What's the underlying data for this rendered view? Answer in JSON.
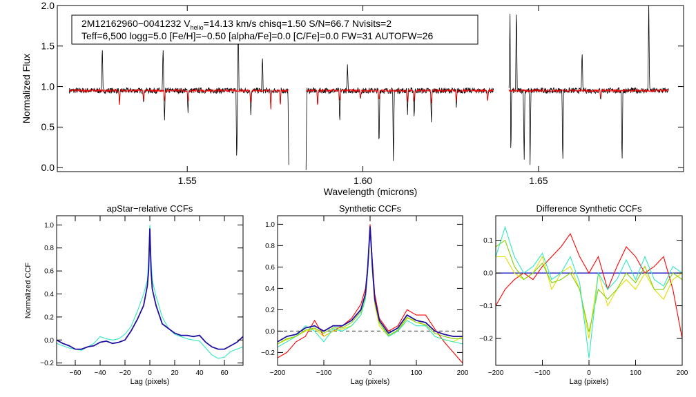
{
  "chart_data": [
    {
      "type": "line",
      "id": "spectrum",
      "xlabel": "Wavelength (microns)",
      "ylabel": "Normalized Flux",
      "xlim": [
        1.513,
        1.6913
      ],
      "ylim": [
        -0.05,
        2.0
      ],
      "xticks": [
        1.55,
        1.6,
        1.65
      ],
      "xtick_labels": [
        "1.55",
        "1.60",
        "1.65"
      ],
      "yticks": [
        0.0,
        0.5,
        1.0,
        1.5,
        2.0
      ],
      "ytick_labels": [
        "0.0",
        "0.5",
        "1.0",
        "1.5",
        "2.0"
      ],
      "annotation": {
        "line1_prefix": "2M12162960−0041232  V",
        "line1_sub": "helio",
        "line1_suffix": "=14.13 km/s  chisq=1.50  S/N=66.7  Nvisits=2",
        "line2": "Teff=6,500 logg=5.0 [Fe/H]=−0.50 [alpha/Fe]=0.0 [C/Fe]=0.0 FW=31 AUTOFW=26"
      },
      "continuum": 0.95,
      "segments": [
        [
          1.5164,
          1.5789
        ],
        [
          1.5838,
          1.6372
        ],
        [
          1.6416,
          1.687
        ]
      ],
      "series": [
        {
          "name": "observed",
          "color": "#000000",
          "lines": [
            [
              1.5258,
              1.5
            ],
            [
              1.5307,
              0.75
            ],
            [
              1.5376,
              0.8
            ],
            [
              1.5431,
              1.5
            ],
            [
              1.5435,
              0.55
            ],
            [
              1.5502,
              0.7
            ],
            [
              1.5641,
              0.0
            ],
            [
              1.5645,
              2.05
            ],
            [
              1.5681,
              0.65
            ],
            [
              1.5714,
              1.4
            ],
            [
              1.5738,
              0.7
            ],
            [
              1.5765,
              0.75
            ],
            [
              1.5789,
              0.0
            ],
            [
              1.5838,
              0.0
            ],
            [
              1.5871,
              0.75
            ],
            [
              1.5934,
              0.5
            ],
            [
              1.5956,
              1.25
            ],
            [
              1.5993,
              0.85
            ],
            [
              1.6046,
              0.2
            ],
            [
              1.6087,
              0.0
            ],
            [
              1.6127,
              0.65
            ],
            [
              1.6146,
              0.6
            ],
            [
              1.6195,
              0.55
            ],
            [
              1.6266,
              0.7
            ],
            [
              1.6355,
              0.8
            ],
            [
              1.6419,
              2.05
            ],
            [
              1.6421,
              0.0
            ],
            [
              1.6437,
              2.05
            ],
            [
              1.6459,
              0.0
            ],
            [
              1.6476,
              0.0
            ],
            [
              1.6569,
              0.0
            ],
            [
              1.6624,
              1.5
            ],
            [
              1.6677,
              0.85
            ],
            [
              1.6738,
              0.0
            ],
            [
              1.6814,
              2.05
            ]
          ]
        },
        {
          "name": "model",
          "color": "#ff0000",
          "lines": [
            [
              1.5307,
              0.75
            ],
            [
              1.5376,
              0.82
            ],
            [
              1.5435,
              0.8
            ],
            [
              1.5502,
              0.8
            ],
            [
              1.5681,
              0.8
            ],
            [
              1.5738,
              0.72
            ],
            [
              1.5765,
              0.76
            ],
            [
              1.5871,
              0.73
            ],
            [
              1.5934,
              0.8
            ],
            [
              1.5993,
              0.85
            ],
            [
              1.6046,
              0.82
            ],
            [
              1.6127,
              0.8
            ],
            [
              1.6146,
              0.8
            ],
            [
              1.6195,
              0.78
            ],
            [
              1.6266,
              0.82
            ],
            [
              1.6355,
              0.8
            ],
            [
              1.6677,
              0.86
            ]
          ]
        }
      ]
    },
    {
      "type": "line",
      "id": "apstar",
      "title": "apStar−relative CCFs",
      "xlabel": "Lag (pixels)",
      "ylabel": "Normalized CCF",
      "xlim": [
        -75,
        75
      ],
      "ylim": [
        -0.22,
        1.08
      ],
      "xticks": [
        -60,
        -40,
        -20,
        0,
        20,
        40,
        60
      ],
      "xtick_labels": [
        "−60",
        "−40",
        "−20",
        "0",
        "20",
        "40",
        "60"
      ],
      "yticks": [
        -0.2,
        0.0,
        0.2,
        0.4,
        0.6,
        0.8,
        1.0
      ],
      "ytick_labels": [
        "−0.2",
        "0.0",
        "0.2",
        "0.4",
        "0.6",
        "0.8",
        "1.0"
      ],
      "x": [
        -75,
        -70,
        -65,
        -60,
        -55,
        -50,
        -45,
        -40,
        -35,
        -30,
        -25,
        -20,
        -15,
        -10,
        -5,
        -2,
        -1,
        0,
        1,
        2,
        5,
        10,
        15,
        20,
        25,
        30,
        35,
        40,
        45,
        50,
        55,
        60,
        65,
        70,
        75
      ],
      "series": [
        {
          "name": "cyan",
          "color": "#30e8c0",
          "values": [
            -0.03,
            -0.05,
            -0.07,
            -0.08,
            -0.09,
            -0.06,
            -0.03,
            0.03,
            0.01,
            0.0,
            0.01,
            0.05,
            0.12,
            0.25,
            0.4,
            0.52,
            0.7,
            1.0,
            0.7,
            0.52,
            0.38,
            0.2,
            0.1,
            0.05,
            0.03,
            0.01,
            0.0,
            -0.01,
            -0.07,
            -0.13,
            -0.16,
            -0.15,
            -0.1,
            -0.08,
            -0.06
          ]
        },
        {
          "name": "navy",
          "color": "#2010a0",
          "values": [
            0.0,
            -0.03,
            -0.05,
            -0.08,
            -0.08,
            -0.06,
            -0.05,
            -0.02,
            -0.01,
            -0.03,
            -0.02,
            0.0,
            0.08,
            0.18,
            0.3,
            0.47,
            0.6,
            0.97,
            0.6,
            0.44,
            0.3,
            0.14,
            0.1,
            0.06,
            0.04,
            0.04,
            0.03,
            0.04,
            -0.02,
            -0.06,
            -0.08,
            -0.08,
            -0.05,
            -0.02,
            0.03
          ]
        }
      ]
    },
    {
      "type": "line",
      "id": "synthetic",
      "title": "Synthetic CCFs",
      "xlabel": "Lag (pixels)",
      "ylabel": "",
      "xlim": [
        -200,
        200
      ],
      "ylim": [
        -0.32,
        1.08
      ],
      "xticks": [
        -200,
        -100,
        0,
        100,
        200
      ],
      "xtick_labels": [
        "−200",
        "−100",
        "0",
        "100",
        "200"
      ],
      "yticks": [
        -0.2,
        0.0,
        0.2,
        0.4,
        0.6,
        0.8,
        1.0
      ],
      "ytick_labels": [
        "−0.2",
        "0.0",
        "0.2",
        "0.4",
        "0.6",
        "0.8",
        "1.0"
      ],
      "hline": {
        "y": 0.0,
        "style": "dashed",
        "color": "#555555"
      },
      "x": [
        -200,
        -180,
        -160,
        -140,
        -120,
        -100,
        -80,
        -60,
        -40,
        -20,
        -10,
        -5,
        0,
        5,
        10,
        20,
        40,
        60,
        80,
        100,
        120,
        140,
        160,
        180,
        200
      ],
      "series": [
        {
          "name": "red",
          "color": "#ff0000",
          "values": [
            -0.25,
            -0.2,
            -0.1,
            -0.05,
            0.1,
            -0.05,
            0.0,
            0.05,
            0.12,
            0.25,
            0.4,
            0.6,
            1.0,
            0.65,
            0.35,
            0.12,
            0.0,
            0.05,
            0.2,
            0.15,
            0.15,
            0.02,
            -0.1,
            -0.2,
            -0.3
          ]
        },
        {
          "name": "yellow",
          "color": "#e0e000",
          "values": [
            -0.12,
            -0.08,
            -0.05,
            0.0,
            0.02,
            -0.05,
            0.0,
            0.02,
            0.05,
            0.15,
            0.3,
            0.55,
            0.95,
            0.55,
            0.25,
            0.05,
            -0.05,
            0.0,
            0.12,
            0.1,
            0.05,
            -0.05,
            -0.08,
            -0.1,
            -0.05
          ]
        },
        {
          "name": "cyan",
          "color": "#30e8c0",
          "values": [
            -0.15,
            -0.1,
            -0.05,
            0.05,
            0.0,
            -0.1,
            0.02,
            0.0,
            0.05,
            0.15,
            0.3,
            0.55,
            0.95,
            0.55,
            0.28,
            0.08,
            -0.05,
            0.0,
            0.1,
            0.05,
            0.05,
            -0.05,
            -0.08,
            -0.1,
            -0.12
          ]
        },
        {
          "name": "green",
          "color": "#80d000",
          "values": [
            -0.12,
            -0.07,
            -0.05,
            0.01,
            0.03,
            -0.02,
            0.03,
            0.03,
            0.08,
            0.18,
            0.33,
            0.58,
            0.96,
            0.58,
            0.28,
            0.08,
            -0.04,
            0.01,
            0.13,
            0.08,
            0.06,
            -0.02,
            -0.05,
            -0.07,
            -0.07
          ]
        },
        {
          "name": "navy",
          "color": "#2010a0",
          "values": [
            -0.1,
            -0.05,
            -0.03,
            0.03,
            0.05,
            0.0,
            0.05,
            0.05,
            0.1,
            0.2,
            0.35,
            0.6,
            0.98,
            0.6,
            0.3,
            0.1,
            -0.02,
            0.03,
            0.15,
            0.1,
            0.08,
            0.0,
            -0.03,
            -0.05,
            -0.05
          ]
        }
      ]
    },
    {
      "type": "line",
      "id": "difference",
      "title": "Difference Synthetic CCFs",
      "xlabel": "Lag (pixels)",
      "ylabel": "",
      "xlim": [
        -200,
        200
      ],
      "ylim": [
        -0.282,
        0.175
      ],
      "xticks": [
        -200,
        -100,
        0,
        100,
        200
      ],
      "xtick_labels": [
        "−200",
        "−100",
        "0",
        "100",
        "200"
      ],
      "yticks": [
        -0.2,
        -0.1,
        0.0,
        0.1
      ],
      "ytick_labels": [
        "−0.2",
        "−0.1",
        "0.0",
        "0.1"
      ],
      "hline": {
        "y": 0.0,
        "style": "solid",
        "color": "#0000c0"
      },
      "x": [
        -200,
        -180,
        -160,
        -140,
        -120,
        -100,
        -80,
        -60,
        -40,
        -20,
        0,
        20,
        40,
        60,
        80,
        100,
        120,
        140,
        160,
        180,
        200
      ],
      "series": [
        {
          "name": "red",
          "color": "#ff0000",
          "values": [
            -0.1,
            -0.05,
            -0.02,
            0.0,
            -0.02,
            0.02,
            0.05,
            0.08,
            0.12,
            0.05,
            0.0,
            0.05,
            -0.05,
            0.02,
            0.08,
            0.05,
            0.0,
            0.02,
            0.05,
            -0.05,
            -0.2
          ]
        },
        {
          "name": "yellow",
          "color": "#e0e000",
          "values": [
            0.05,
            0.05,
            0.0,
            -0.02,
            0.0,
            0.05,
            -0.05,
            0.0,
            0.02,
            -0.05,
            -0.2,
            0.0,
            -0.1,
            -0.05,
            -0.02,
            -0.05,
            0.0,
            -0.05,
            -0.08,
            -0.02,
            0.0
          ]
        },
        {
          "name": "green",
          "color": "#80d000",
          "values": [
            0.08,
            0.1,
            0.02,
            -0.02,
            0.0,
            0.03,
            -0.03,
            -0.02,
            0.0,
            -0.05,
            -0.18,
            -0.05,
            -0.08,
            -0.05,
            0.0,
            -0.03,
            0.02,
            -0.05,
            -0.05,
            0.0,
            -0.02
          ]
        },
        {
          "name": "cyan",
          "color": "#30e8c0",
          "values": [
            0.05,
            0.14,
            0.05,
            0.0,
            0.02,
            0.06,
            -0.02,
            0.0,
            0.05,
            -0.03,
            -0.26,
            0.0,
            -0.05,
            -0.02,
            0.04,
            -0.02,
            0.05,
            -0.02,
            -0.04,
            0.02,
            0.0
          ]
        }
      ]
    }
  ]
}
